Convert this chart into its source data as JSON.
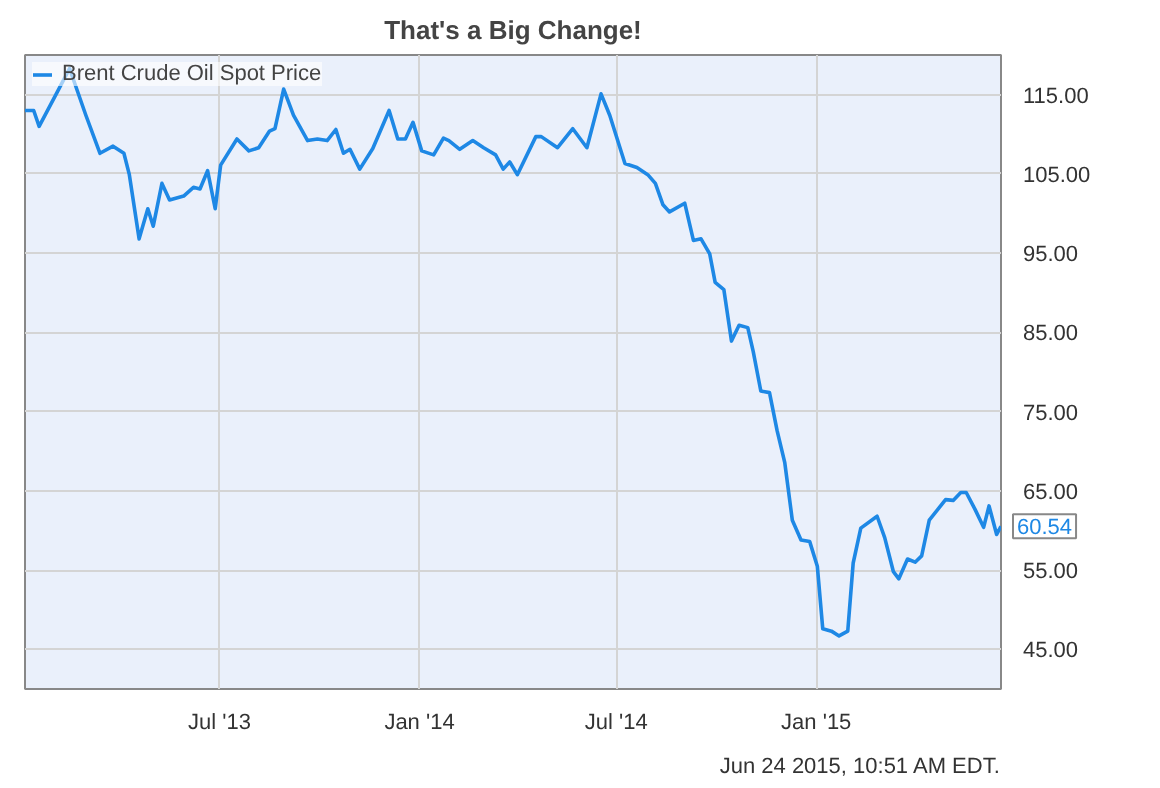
{
  "chart_data": {
    "type": "line",
    "title": "That's a Big Change!",
    "x": [
      "2013-01-03",
      "2013-01-11",
      "2013-01-16",
      "2013-02-02",
      "2013-02-13",
      "2013-02-28",
      "2013-03-13",
      "2013-03-25",
      "2013-04-04",
      "2013-04-09",
      "2013-04-18",
      "2013-04-26",
      "2013-05-01",
      "2013-05-09",
      "2013-05-16",
      "2013-05-29",
      "2013-06-07",
      "2013-06-13",
      "2013-06-20",
      "2013-06-27",
      "2013-07-02",
      "2013-07-17",
      "2013-07-28",
      "2013-08-06",
      "2013-08-16",
      "2013-08-21",
      "2013-08-29",
      "2013-09-07",
      "2013-09-20",
      "2013-09-29",
      "2013-10-08",
      "2013-10-16",
      "2013-10-23",
      "2013-10-29",
      "2013-11-07",
      "2013-11-19",
      "2013-12-04",
      "2013-12-12",
      "2013-12-19",
      "2013-12-26",
      "2014-01-03",
      "2014-01-14",
      "2014-01-23",
      "2014-01-28",
      "2014-02-07",
      "2014-02-19",
      "2014-03-01",
      "2014-03-12",
      "2014-03-19",
      "2014-03-25",
      "2014-04-01",
      "2014-04-18",
      "2014-04-23",
      "2014-05-08",
      "2014-05-22",
      "2014-06-04",
      "2014-06-17",
      "2014-06-25",
      "2014-07-09",
      "2014-07-20",
      "2014-07-30",
      "2014-08-06",
      "2014-08-13",
      "2014-08-19",
      "2014-09-02",
      "2014-09-10",
      "2014-09-17",
      "2014-09-25",
      "2014-09-30",
      "2014-10-08",
      "2014-10-15",
      "2014-10-22",
      "2014-10-30",
      "2014-11-04",
      "2014-11-11",
      "2014-11-19",
      "2014-11-26",
      "2014-12-03",
      "2014-12-10",
      "2014-12-18",
      "2014-12-26",
      "2015-01-02",
      "2015-01-07",
      "2015-01-15",
      "2015-01-22",
      "2015-01-30",
      "2015-02-04",
      "2015-02-11",
      "2015-02-26",
      "2015-03-05",
      "2015-03-13",
      "2015-03-18",
      "2015-03-26",
      "2015-04-02",
      "2015-04-08",
      "2015-04-15",
      "2015-04-30",
      "2015-05-07",
      "2015-05-14",
      "2015-05-19",
      "2015-05-27",
      "2015-06-04",
      "2015-06-09",
      "2015-06-16",
      "2015-06-20"
    ],
    "series": [
      {
        "name": "Brent Crude Oil Spot Price",
        "color": "#1e88e5",
        "values": [
          113.0,
          113.0,
          111.0,
          115.4,
          118.3,
          112.4,
          107.6,
          108.5,
          107.6,
          104.9,
          96.8,
          100.6,
          98.4,
          103.8,
          101.7,
          102.2,
          103.3,
          103.1,
          105.4,
          100.6,
          106.1,
          109.4,
          107.9,
          108.3,
          110.4,
          110.7,
          115.7,
          112.4,
          109.2,
          109.4,
          109.2,
          110.6,
          107.6,
          108.1,
          105.6,
          108.2,
          113.0,
          109.4,
          109.4,
          111.5,
          107.9,
          107.4,
          109.5,
          109.2,
          108.1,
          109.2,
          108.3,
          107.4,
          105.6,
          106.5,
          104.9,
          109.7,
          109.7,
          108.3,
          110.7,
          108.3,
          115.1,
          112.4,
          106.3,
          105.8,
          104.9,
          103.8,
          101.1,
          100.2,
          101.3,
          96.6,
          96.8,
          94.9,
          91.3,
          90.4,
          83.9,
          85.9,
          85.6,
          82.6,
          77.6,
          77.4,
          72.6,
          68.6,
          61.3,
          58.8,
          58.6,
          55.5,
          47.6,
          47.3,
          46.7,
          47.3,
          55.9,
          60.3,
          61.8,
          59.1,
          54.8,
          53.9,
          56.4,
          56.0,
          56.8,
          61.3,
          63.9,
          63.8,
          64.8,
          64.8,
          62.7,
          60.4,
          63.1,
          59.5,
          60.54
        ],
        "value_labels": [
          null,
          null,
          null,
          null,
          null,
          null,
          null,
          null,
          null,
          null,
          null,
          null,
          null,
          null,
          null,
          null,
          null,
          null,
          null,
          null,
          null,
          null,
          null,
          null,
          null,
          null,
          null,
          null,
          null,
          null,
          null,
          null,
          null,
          null,
          null,
          null,
          null,
          null,
          null,
          null,
          null,
          null,
          null,
          null,
          null,
          null,
          null,
          null,
          null,
          null,
          null,
          null,
          null,
          null,
          null,
          null,
          null,
          null,
          null,
          null,
          null,
          null,
          null,
          null,
          null,
          null,
          null,
          null,
          null,
          null,
          null,
          null,
          null,
          null,
          null,
          null,
          null,
          null,
          null,
          null,
          null,
          null,
          null,
          null,
          null,
          null,
          null,
          null,
          null,
          null,
          null,
          null,
          null,
          null,
          null,
          null,
          null,
          null,
          null,
          null,
          null,
          null,
          null,
          null,
          "60.54"
        ]
      }
    ],
    "xlim": [
      "2013-01-03",
      "2015-06-20"
    ],
    "xticks": [
      {
        "value": "2013-07-01",
        "label": "Jul '13"
      },
      {
        "value": "2014-01-01",
        "label": "Jan '14"
      },
      {
        "value": "2014-07-01",
        "label": "Jul '14"
      },
      {
        "value": "2015-01-01",
        "label": "Jan '15"
      }
    ],
    "ylim": [
      40,
      120
    ],
    "yticks": [
      {
        "value": 45,
        "label": "45.00"
      },
      {
        "value": 55,
        "label": "55.00"
      },
      {
        "value": 65,
        "label": "65.00"
      },
      {
        "value": 75,
        "label": "75.00"
      },
      {
        "value": 85,
        "label": "85.00"
      },
      {
        "value": 95,
        "label": "95.00"
      },
      {
        "value": 105,
        "label": "105.00"
      },
      {
        "value": 115,
        "label": "115.00"
      }
    ],
    "grid": true,
    "legend": "top left",
    "marker": "none",
    "line_style": "solid",
    "annotations": [
      "Jun 24 2015, 10:51 AM EDT."
    ]
  }
}
